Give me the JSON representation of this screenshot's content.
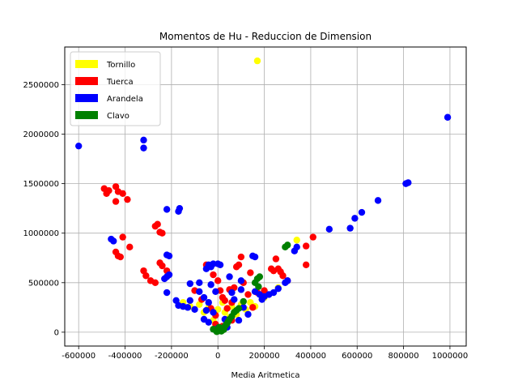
{
  "chart_data": {
    "type": "scatter",
    "title": "Momentos de Hu - Reduccion de Dimension",
    "xlabel": "Media Aritmetica",
    "ylabel": "",
    "xlim": [
      -660000,
      1070000
    ],
    "ylim": [
      -140000,
      2880000
    ],
    "xticks": [
      -600000,
      -400000,
      -200000,
      0,
      200000,
      400000,
      600000,
      800000,
      1000000
    ],
    "yticks": [
      0,
      500000,
      1000000,
      1500000,
      2000000,
      2500000
    ],
    "grid": true,
    "legend_position": "top-left",
    "series": [
      {
        "name": "Tornillo",
        "color": "#ffff00",
        "points": [
          [
            170000,
            2740000
          ],
          [
            340000,
            930000
          ],
          [
            -80000,
            280000
          ],
          [
            -40000,
            250000
          ],
          [
            0,
            230000
          ],
          [
            30000,
            200000
          ],
          [
            60000,
            260000
          ],
          [
            100000,
            280000
          ],
          [
            140000,
            300000
          ],
          [
            200000,
            350000
          ],
          [
            -150000,
            300000
          ],
          [
            -120000,
            260000
          ],
          [
            260000,
            450000
          ],
          [
            50000,
            150000
          ],
          [
            -20000,
            120000
          ],
          [
            80000,
            180000
          ],
          [
            120000,
            230000
          ],
          [
            -60000,
            200000
          ],
          [
            20000,
            300000
          ],
          [
            160000,
            260000
          ]
        ]
      },
      {
        "name": "Tuerca",
        "color": "#ff0000",
        "points": [
          [
            -490000,
            1450000
          ],
          [
            -480000,
            1400000
          ],
          [
            -470000,
            1430000
          ],
          [
            -440000,
            1470000
          ],
          [
            -430000,
            1420000
          ],
          [
            -410000,
            1400000
          ],
          [
            -390000,
            1340000
          ],
          [
            -440000,
            1320000
          ],
          [
            -410000,
            960000
          ],
          [
            -380000,
            860000
          ],
          [
            -440000,
            810000
          ],
          [
            -430000,
            770000
          ],
          [
            -420000,
            760000
          ],
          [
            -320000,
            620000
          ],
          [
            -310000,
            570000
          ],
          [
            -290000,
            520000
          ],
          [
            -270000,
            500000
          ],
          [
            -270000,
            1070000
          ],
          [
            -260000,
            1090000
          ],
          [
            -250000,
            1010000
          ],
          [
            -240000,
            1000000
          ],
          [
            -250000,
            700000
          ],
          [
            -240000,
            670000
          ],
          [
            -220000,
            620000
          ],
          [
            -50000,
            680000
          ],
          [
            -20000,
            580000
          ],
          [
            0,
            520000
          ],
          [
            10000,
            420000
          ],
          [
            20000,
            350000
          ],
          [
            30000,
            320000
          ],
          [
            -30000,
            240000
          ],
          [
            -10000,
            170000
          ],
          [
            40000,
            240000
          ],
          [
            60000,
            300000
          ],
          [
            50000,
            430000
          ],
          [
            70000,
            450000
          ],
          [
            80000,
            660000
          ],
          [
            90000,
            680000
          ],
          [
            100000,
            760000
          ],
          [
            110000,
            500000
          ],
          [
            130000,
            380000
          ],
          [
            150000,
            250000
          ],
          [
            170000,
            400000
          ],
          [
            200000,
            420000
          ],
          [
            230000,
            640000
          ],
          [
            240000,
            620000
          ],
          [
            250000,
            740000
          ],
          [
            260000,
            640000
          ],
          [
            270000,
            610000
          ],
          [
            280000,
            570000
          ],
          [
            300000,
            520000
          ],
          [
            380000,
            870000
          ],
          [
            380000,
            680000
          ],
          [
            410000,
            960000
          ],
          [
            -10000,
            80000
          ],
          [
            20000,
            60000
          ],
          [
            60000,
            120000
          ],
          [
            -70000,
            330000
          ],
          [
            -100000,
            420000
          ],
          [
            140000,
            600000
          ]
        ]
      },
      {
        "name": "Arandela",
        "color": "#0000ff",
        "points": [
          [
            -600000,
            1880000
          ],
          [
            -320000,
            1940000
          ],
          [
            -320000,
            1860000
          ],
          [
            -460000,
            940000
          ],
          [
            -450000,
            920000
          ],
          [
            -220000,
            1240000
          ],
          [
            -170000,
            1220000
          ],
          [
            -165000,
            1250000
          ],
          [
            -220000,
            780000
          ],
          [
            -210000,
            770000
          ],
          [
            -210000,
            580000
          ],
          [
            -220000,
            560000
          ],
          [
            -230000,
            540000
          ],
          [
            -220000,
            400000
          ],
          [
            -180000,
            320000
          ],
          [
            -170000,
            270000
          ],
          [
            -150000,
            260000
          ],
          [
            -130000,
            250000
          ],
          [
            -120000,
            490000
          ],
          [
            -80000,
            500000
          ],
          [
            -80000,
            410000
          ],
          [
            -60000,
            350000
          ],
          [
            -50000,
            640000
          ],
          [
            -40000,
            680000
          ],
          [
            -30000,
            660000
          ],
          [
            -20000,
            690000
          ],
          [
            0,
            690000
          ],
          [
            10000,
            680000
          ],
          [
            -30000,
            480000
          ],
          [
            -10000,
            410000
          ],
          [
            -40000,
            300000
          ],
          [
            -50000,
            220000
          ],
          [
            -20000,
            200000
          ],
          [
            -60000,
            130000
          ],
          [
            -40000,
            100000
          ],
          [
            50000,
            560000
          ],
          [
            60000,
            400000
          ],
          [
            70000,
            330000
          ],
          [
            100000,
            520000
          ],
          [
            100000,
            430000
          ],
          [
            90000,
            120000
          ],
          [
            110000,
            250000
          ],
          [
            150000,
            770000
          ],
          [
            160000,
            760000
          ],
          [
            160000,
            410000
          ],
          [
            180000,
            380000
          ],
          [
            190000,
            330000
          ],
          [
            200000,
            360000
          ],
          [
            220000,
            380000
          ],
          [
            240000,
            400000
          ],
          [
            260000,
            440000
          ],
          [
            290000,
            500000
          ],
          [
            300000,
            520000
          ],
          [
            330000,
            820000
          ],
          [
            340000,
            860000
          ],
          [
            480000,
            1040000
          ],
          [
            570000,
            1050000
          ],
          [
            590000,
            1150000
          ],
          [
            620000,
            1210000
          ],
          [
            690000,
            1330000
          ],
          [
            810000,
            1500000
          ],
          [
            820000,
            1510000
          ],
          [
            990000,
            2170000
          ],
          [
            -100000,
            230000
          ],
          [
            30000,
            130000
          ],
          [
            -10000,
            20000
          ],
          [
            0,
            40000
          ],
          [
            40000,
            50000
          ],
          [
            130000,
            180000
          ],
          [
            -120000,
            320000
          ]
        ]
      },
      {
        "name": "Clavo",
        "color": "#008000",
        "points": [
          [
            290000,
            860000
          ],
          [
            300000,
            880000
          ],
          [
            170000,
            540000
          ],
          [
            180000,
            560000
          ],
          [
            160000,
            500000
          ],
          [
            175000,
            460000
          ],
          [
            110000,
            310000
          ],
          [
            90000,
            240000
          ],
          [
            70000,
            200000
          ],
          [
            60000,
            160000
          ],
          [
            50000,
            130000
          ],
          [
            40000,
            90000
          ],
          [
            30000,
            60000
          ],
          [
            20000,
            40000
          ],
          [
            10000,
            20000
          ],
          [
            0,
            10000
          ],
          [
            -10000,
            20000
          ],
          [
            -20000,
            30000
          ],
          [
            5000,
            50000
          ],
          [
            15000,
            10000
          ],
          [
            25000,
            25000
          ],
          [
            -5000,
            5000
          ],
          [
            45000,
            110000
          ],
          [
            80000,
            220000
          ],
          [
            35000,
            75000
          ]
        ]
      }
    ]
  }
}
